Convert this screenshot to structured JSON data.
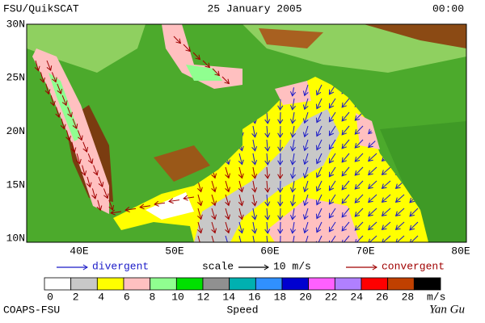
{
  "header": {
    "left": "FSU/QuikSCAT",
    "date": "25 January 2005",
    "time": "00:00"
  },
  "map": {
    "lat_labels": [
      "30N",
      "25N",
      "20N",
      "15N",
      "10N"
    ],
    "lon_labels": [
      "40E",
      "50E",
      "60E",
      "70E",
      "80E"
    ]
  },
  "legend": {
    "divergent": "divergent",
    "scale": "scale",
    "scale_value": "10 m/s",
    "convergent": "convergent",
    "divergent_color": "#1a1ac8",
    "convergent_color": "#a00000"
  },
  "colorbar": {
    "colors": [
      "#ffffff",
      "#c8c8c8",
      "#ffff00",
      "#ffc0c0",
      "#90ff90",
      "#00e000",
      "#909090",
      "#00b0b0",
      "#3090ff",
      "#0000d0",
      "#ff60ff",
      "#b080ff",
      "#ff0000",
      "#c04000",
      "#000000"
    ],
    "ticks": [
      0,
      2,
      4,
      6,
      8,
      10,
      12,
      14,
      16,
      18,
      20,
      22,
      24,
      26,
      28
    ],
    "unit": "m/s",
    "title": "Speed"
  },
  "footer": {
    "left": "COAPS-FSU",
    "right": "Yan Gu"
  }
}
